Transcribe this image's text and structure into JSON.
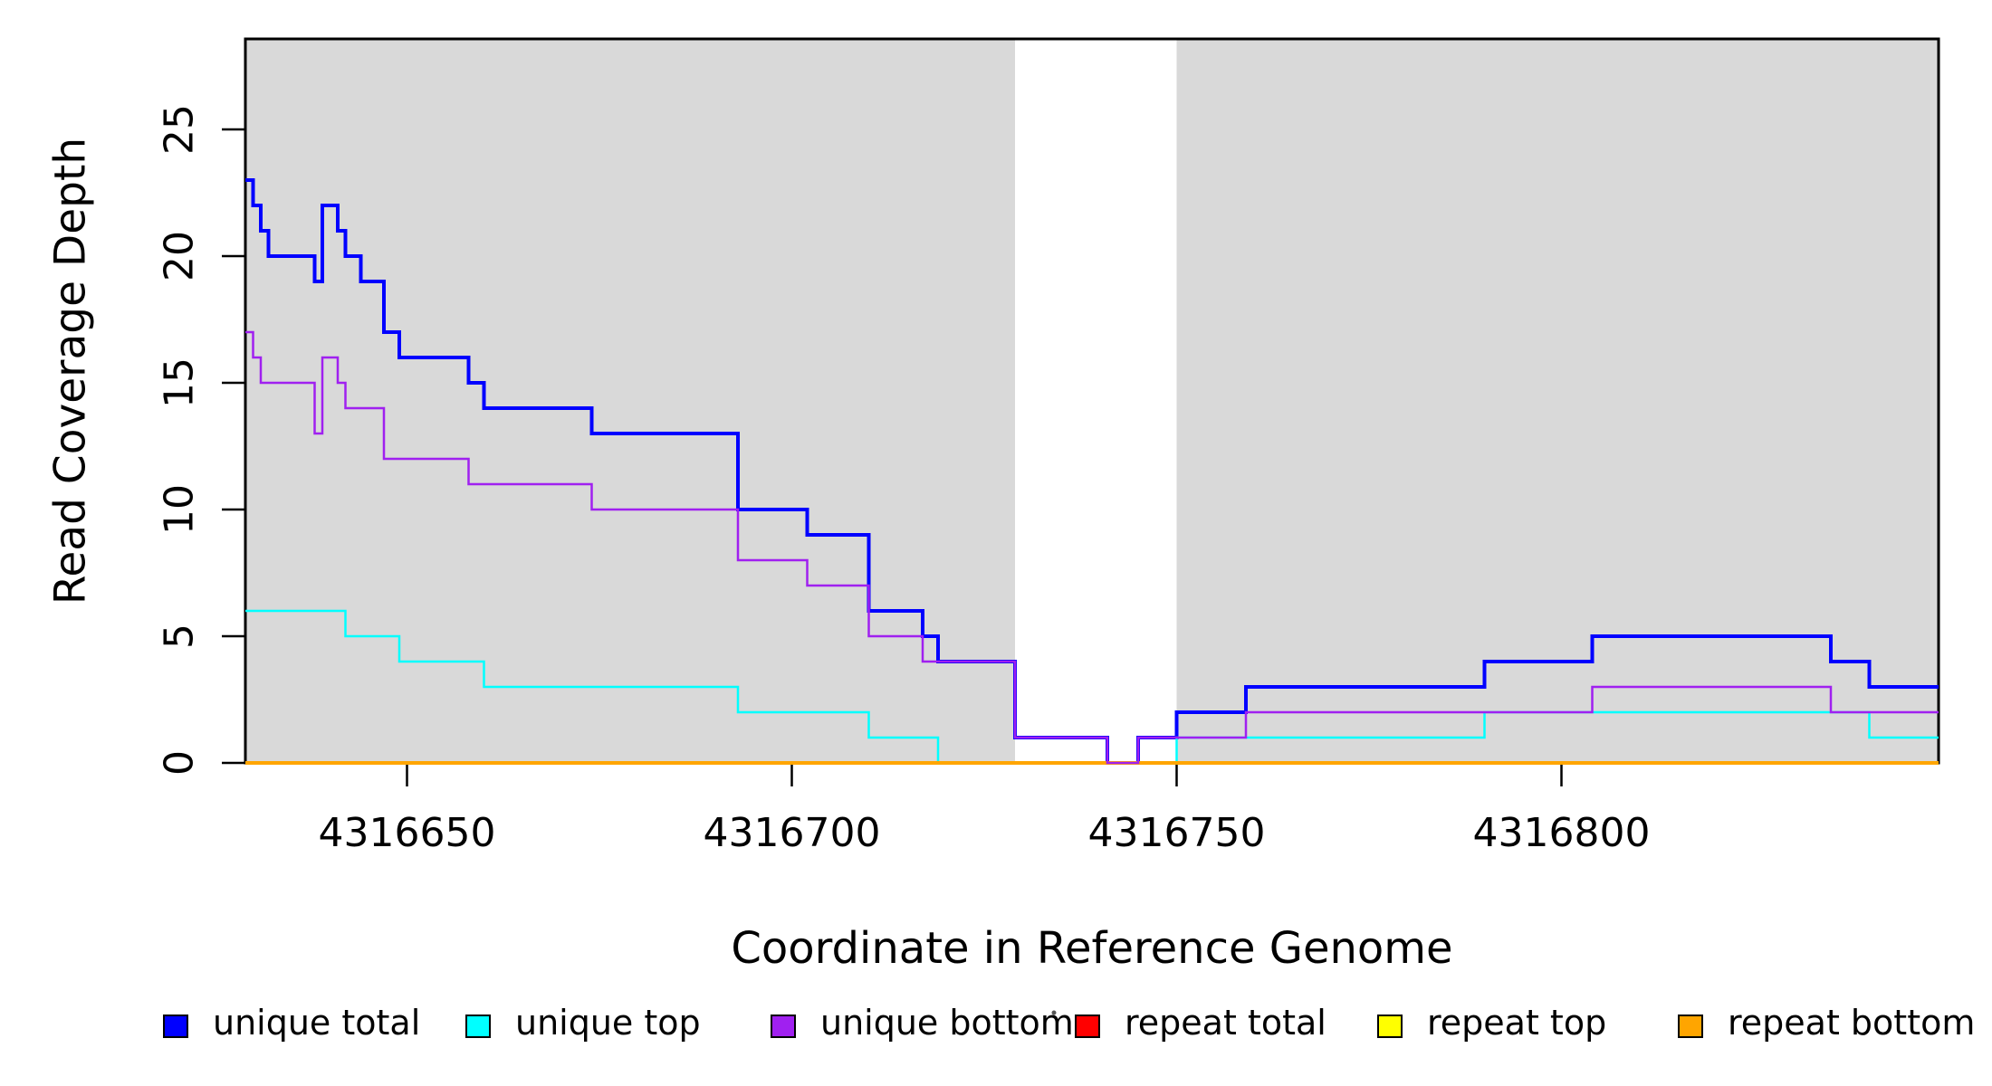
{
  "chart_data": {
    "type": "line",
    "subtype": "step-coverage",
    "title": "",
    "xlabel": "Coordinate in Reference Genome",
    "ylabel": "Read Coverage Depth",
    "xlim": [
      4316629,
      4316849
    ],
    "ylim": [
      0,
      28.57
    ],
    "x_ticks": [
      4316650,
      4316700,
      4316750,
      4316800
    ],
    "y_ticks": [
      0,
      5,
      10,
      15,
      20,
      25
    ],
    "grid": "off",
    "shaded_region_color": "#D9D9D9",
    "shaded_regions": [
      [
        4316629,
        4316729
      ],
      [
        4316750,
        4316849
      ]
    ],
    "series": [
      {
        "name": "unique total",
        "color": "#0000FF",
        "line_width": 4,
        "steps": [
          [
            4316629,
            23
          ],
          [
            4316630,
            22
          ],
          [
            4316631,
            21
          ],
          [
            4316632,
            20
          ],
          [
            4316638,
            19
          ],
          [
            4316639,
            22
          ],
          [
            4316641,
            21
          ],
          [
            4316642,
            20
          ],
          [
            4316644,
            19
          ],
          [
            4316647,
            17
          ],
          [
            4316649,
            16
          ],
          [
            4316658,
            15
          ],
          [
            4316660,
            14
          ],
          [
            4316674,
            13
          ],
          [
            4316693,
            10
          ],
          [
            4316702,
            9
          ],
          [
            4316710,
            6
          ],
          [
            4316717,
            5
          ],
          [
            4316719,
            4
          ],
          [
            4316729,
            1
          ],
          [
            4316741,
            0
          ],
          [
            4316745,
            1
          ],
          [
            4316750,
            2
          ],
          [
            4316759,
            3
          ],
          [
            4316790,
            4
          ],
          [
            4316804,
            5
          ],
          [
            4316835,
            4
          ],
          [
            4316840,
            3
          ]
        ],
        "end": 4316849
      },
      {
        "name": "unique top",
        "color": "#00FFFF",
        "line_width": 2.5,
        "steps": [
          [
            4316629,
            6
          ],
          [
            4316642,
            5
          ],
          [
            4316649,
            4
          ],
          [
            4316660,
            3
          ],
          [
            4316693,
            2
          ],
          [
            4316710,
            1
          ],
          [
            4316719,
            0
          ],
          [
            4316750,
            1
          ],
          [
            4316790,
            2
          ],
          [
            4316840,
            1
          ]
        ],
        "end": 4316849
      },
      {
        "name": "unique bottom",
        "color": "#A020F0",
        "line_width": 2.5,
        "steps": [
          [
            4316629,
            17
          ],
          [
            4316630,
            16
          ],
          [
            4316631,
            15
          ],
          [
            4316638,
            13
          ],
          [
            4316639,
            16
          ],
          [
            4316641,
            15
          ],
          [
            4316642,
            14
          ],
          [
            4316647,
            12
          ],
          [
            4316658,
            11
          ],
          [
            4316674,
            10
          ],
          [
            4316693,
            8
          ],
          [
            4316702,
            7
          ],
          [
            4316710,
            5
          ],
          [
            4316717,
            4
          ],
          [
            4316729,
            1
          ],
          [
            4316741,
            0
          ],
          [
            4316745,
            1
          ],
          [
            4316759,
            2
          ],
          [
            4316804,
            3
          ],
          [
            4316835,
            2
          ]
        ],
        "end": 4316849
      },
      {
        "name": "repeat total",
        "color": "#FF0000",
        "line_width": 2.5,
        "steps": [
          [
            4316629,
            0
          ]
        ],
        "end": 4316849
      },
      {
        "name": "repeat top",
        "color": "#FFFF00",
        "line_width": 2.5,
        "steps": [
          [
            4316629,
            0
          ]
        ],
        "end": 4316849
      },
      {
        "name": "repeat bottom",
        "color": "#FFA500",
        "line_width": 4,
        "steps": [
          [
            4316629,
            0
          ]
        ],
        "end": 4316849
      }
    ],
    "draw_order": [
      "repeat total",
      "repeat top",
      "unique total",
      "unique top",
      "repeat bottom",
      "unique bottom"
    ],
    "legend": {
      "position": "bottom",
      "entries": [
        {
          "label": "unique total",
          "color": "#0000FF"
        },
        {
          "label": "unique top",
          "color": "#00FFFF"
        },
        {
          "label": "unique bottom",
          "color": "#A020F0"
        },
        {
          "label": "repeat total",
          "color": "#FF0000"
        },
        {
          "label": "repeat top",
          "color": "#FFFF00"
        },
        {
          "label": "repeat bottom",
          "color": "#FFA500"
        }
      ]
    }
  }
}
